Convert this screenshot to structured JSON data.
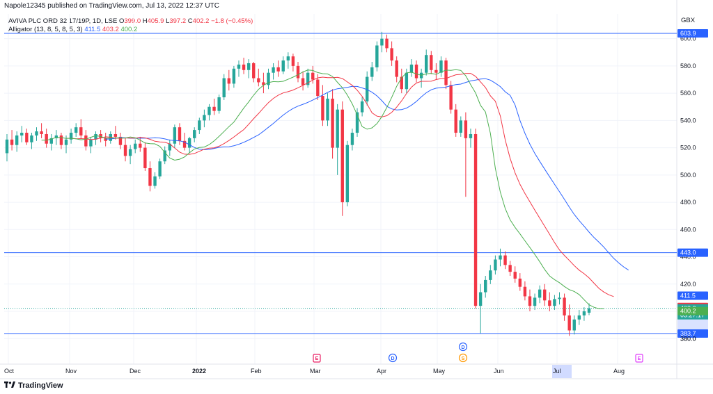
{
  "header": {
    "publisher": "Napole12345 published on TradingView.com, Jul 13, 2022 12:37 UTC",
    "symbol": "AVIVA PLC ORD 32 17/19P, 1D, LSE",
    "ohlc": {
      "o_label": "O",
      "o": "399.0",
      "h_label": "H",
      "h": "405.9",
      "l_label": "L",
      "l": "397.2",
      "c_label": "C",
      "c": "402.2",
      "change": "−1.8 (−0.45%)"
    },
    "indicator": {
      "name": "Alligator (13, 8, 5, 8, 5, 3)",
      "jaw": "411.5",
      "teeth": "403.2",
      "lips": "400.2"
    },
    "currency": "GBX"
  },
  "brand": {
    "logo_icon": "tradingview-logo-icon",
    "name": "TradingView"
  },
  "chart_data": {
    "type": "candlestick",
    "y_axis": {
      "ylim": [
        370,
        613
      ],
      "ticks": [
        "380.0",
        "400.0",
        "420.0",
        "440.0",
        "460.0",
        "480.0",
        "500.0",
        "520.0",
        "540.0",
        "560.0",
        "580.0",
        "600.0"
      ]
    },
    "x_axis": {
      "ticks": [
        "Oct",
        "Nov",
        "Dec",
        "2022",
        "Feb",
        "Mar",
        "Apr",
        "May",
        "Jun",
        "Jul",
        "Aug"
      ],
      "highlighted": "Jul"
    },
    "horizontal_lines": [
      {
        "value": 603.9,
        "label": "603.9",
        "color": "#2962ff"
      },
      {
        "value": 443.0,
        "label": "443.0",
        "color": "#2962ff"
      },
      {
        "value": 383.7,
        "label": "383.7",
        "color": "#2962ff"
      }
    ],
    "last_price": {
      "value": 402.2,
      "label": "402.2",
      "countdown": "03:27:17",
      "color": "#26a69a"
    },
    "alligator_labels": [
      {
        "name": "jaw",
        "value": 411.5,
        "label": "411.5",
        "color": "#2962ff"
      },
      {
        "name": "teeth",
        "value": 403.2,
        "label": "403.2",
        "color": "#f23645"
      },
      {
        "name": "lips",
        "value": 400.2,
        "label": "400.2",
        "color": "#4caf50"
      }
    ],
    "lower_bound_label": {
      "value": 380.0,
      "label": "380.0"
    },
    "events": [
      {
        "letter": "E",
        "month": "Mar",
        "color": "#e91e63"
      },
      {
        "letter": "D",
        "month": "Apr",
        "color": "#2962ff"
      },
      {
        "letter": "D",
        "month": "May",
        "color": "#2962ff"
      },
      {
        "letter": "S",
        "month": "May",
        "color": "#ff9800"
      },
      {
        "letter": "E",
        "month": "Aug",
        "color": "#e040fb"
      }
    ],
    "colors": {
      "up": "#26a69a",
      "down": "#f23645",
      "jaw": "#2962ff",
      "teeth": "#f23645",
      "lips": "#4caf50",
      "grid": "#f0f3fa"
    },
    "candles": [
      [
        516,
        530,
        510,
        526
      ],
      [
        526,
        533,
        518,
        522
      ],
      [
        522,
        532,
        517,
        529
      ],
      [
        529,
        536,
        524,
        531
      ],
      [
        531,
        534,
        522,
        524
      ],
      [
        524,
        531,
        519,
        529
      ],
      [
        529,
        535,
        525,
        532
      ],
      [
        532,
        538,
        527,
        530
      ],
      [
        530,
        534,
        520,
        523
      ],
      [
        523,
        530,
        518,
        527
      ],
      [
        527,
        533,
        522,
        529
      ],
      [
        529,
        531,
        519,
        522
      ],
      [
        522,
        529,
        516,
        526
      ],
      [
        526,
        534,
        523,
        531
      ],
      [
        531,
        538,
        528,
        535
      ],
      [
        535,
        541,
        527,
        529
      ],
      [
        529,
        533,
        518,
        521
      ],
      [
        521,
        528,
        516,
        526
      ],
      [
        526,
        532,
        522,
        530
      ],
      [
        530,
        533,
        524,
        527
      ],
      [
        527,
        531,
        521,
        525
      ],
      [
        525,
        532,
        523,
        530
      ],
      [
        530,
        536,
        526,
        528
      ],
      [
        528,
        531,
        519,
        522
      ],
      [
        522,
        527,
        510,
        514
      ],
      [
        514,
        522,
        508,
        519
      ],
      [
        519,
        526,
        516,
        523
      ],
      [
        523,
        528,
        517,
        520
      ],
      [
        520,
        524,
        503,
        505
      ],
      [
        505,
        510,
        488,
        492
      ],
      [
        492,
        502,
        490,
        499
      ],
      [
        499,
        512,
        497,
        510
      ],
      [
        510,
        521,
        508,
        518
      ],
      [
        518,
        526,
        514,
        523
      ],
      [
        523,
        537,
        520,
        535
      ],
      [
        535,
        538,
        522,
        525
      ],
      [
        525,
        531,
        518,
        520
      ],
      [
        520,
        528,
        516,
        527
      ],
      [
        527,
        535,
        524,
        533
      ],
      [
        533,
        542,
        530,
        540
      ],
      [
        540,
        548,
        535,
        544
      ],
      [
        544,
        552,
        540,
        550
      ],
      [
        550,
        556,
        544,
        547
      ],
      [
        547,
        559,
        545,
        557
      ],
      [
        557,
        574,
        555,
        571
      ],
      [
        571,
        577,
        562,
        567
      ],
      [
        567,
        580,
        564,
        578
      ],
      [
        578,
        584,
        572,
        581
      ],
      [
        581,
        586,
        574,
        577
      ],
      [
        577,
        585,
        571,
        582
      ],
      [
        582,
        583,
        568,
        571
      ],
      [
        571,
        578,
        565,
        568
      ],
      [
        568,
        575,
        560,
        566
      ],
      [
        566,
        578,
        563,
        575
      ],
      [
        575,
        582,
        570,
        579
      ],
      [
        579,
        584,
        572,
        576
      ],
      [
        576,
        587,
        574,
        584
      ],
      [
        584,
        590,
        578,
        587
      ],
      [
        587,
        589,
        576,
        580
      ],
      [
        580,
        583,
        568,
        571
      ],
      [
        571,
        576,
        562,
        566
      ],
      [
        566,
        578,
        564,
        575
      ],
      [
        575,
        580,
        567,
        570
      ],
      [
        570,
        574,
        555,
        558
      ],
      [
        558,
        566,
        536,
        540
      ],
      [
        540,
        560,
        536,
        556
      ],
      [
        556,
        563,
        512,
        520
      ],
      [
        520,
        552,
        500,
        548
      ],
      [
        548,
        554,
        470,
        480
      ],
      [
        480,
        525,
        477,
        522
      ],
      [
        522,
        534,
        518,
        531
      ],
      [
        531,
        549,
        528,
        546
      ],
      [
        546,
        557,
        543,
        554
      ],
      [
        554,
        576,
        551,
        572
      ],
      [
        572,
        583,
        569,
        579
      ],
      [
        579,
        598,
        576,
        595
      ],
      [
        595,
        605,
        590,
        600
      ],
      [
        600,
        603,
        590,
        593
      ],
      [
        593,
        598,
        580,
        584
      ],
      [
        584,
        587,
        568,
        572
      ],
      [
        572,
        578,
        560,
        563
      ],
      [
        563,
        578,
        560,
        575
      ],
      [
        575,
        585,
        572,
        581
      ],
      [
        581,
        584,
        568,
        571
      ],
      [
        571,
        578,
        564,
        575
      ],
      [
        575,
        592,
        573,
        588
      ],
      [
        588,
        591,
        574,
        577
      ],
      [
        577,
        582,
        570,
        575
      ],
      [
        575,
        587,
        572,
        584
      ],
      [
        584,
        586,
        563,
        566
      ],
      [
        566,
        569,
        545,
        548
      ],
      [
        548,
        552,
        528,
        531
      ],
      [
        531,
        543,
        528,
        540
      ],
      [
        540,
        546,
        484,
        527
      ],
      [
        527,
        534,
        520,
        530
      ],
      [
        530,
        534,
        402,
        404
      ],
      [
        404,
        420,
        384,
        414
      ],
      [
        414,
        426,
        410,
        423
      ],
      [
        423,
        434,
        420,
        430
      ],
      [
        430,
        441,
        427,
        438
      ],
      [
        438,
        446,
        433,
        441
      ],
      [
        441,
        444,
        431,
        434
      ],
      [
        434,
        437,
        426,
        429
      ],
      [
        429,
        433,
        421,
        424
      ],
      [
        424,
        428,
        415,
        418
      ],
      [
        418,
        422,
        408,
        411
      ],
      [
        411,
        416,
        400,
        404
      ],
      [
        404,
        413,
        401,
        410
      ],
      [
        410,
        419,
        406,
        416
      ],
      [
        416,
        420,
        404,
        408
      ],
      [
        408,
        414,
        400,
        404
      ],
      [
        404,
        412,
        401,
        409
      ],
      [
        409,
        414,
        405,
        410
      ],
      [
        410,
        413,
        393,
        397
      ],
      [
        397,
        405,
        382,
        386
      ],
      [
        386,
        397,
        383,
        394
      ],
      [
        394,
        401,
        390,
        397
      ],
      [
        397,
        403,
        393,
        400
      ],
      [
        399.0,
        405.9,
        397.2,
        402.2
      ]
    ]
  }
}
